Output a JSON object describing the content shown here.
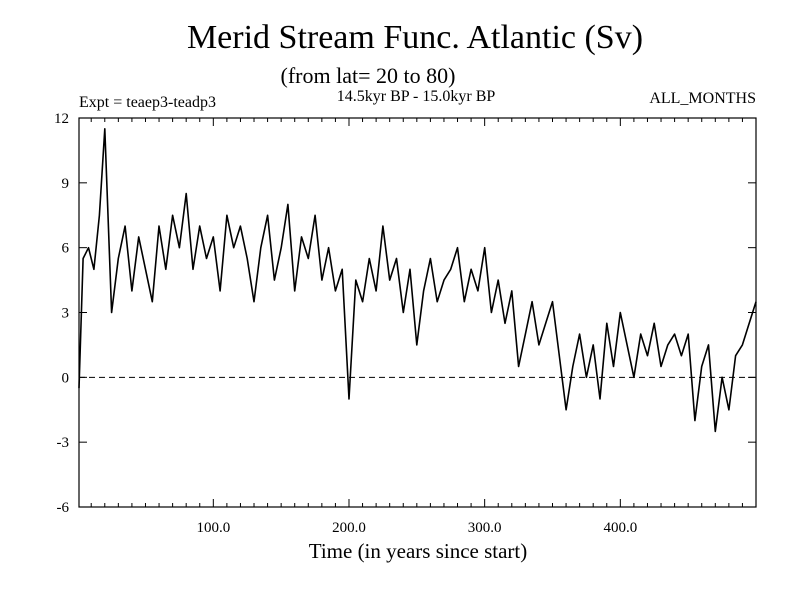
{
  "chart_data": {
    "type": "line",
    "title": "Merid Stream Func. Atlantic (Sv)",
    "subtitle": "(from lat= 20 to 80)",
    "experiment_label": "Expt = teaep3-teadp3",
    "period_label": "14.5kyr BP - 15.0kyr BP",
    "season_label": "ALL_MONTHS",
    "xlabel": "Time (in years since start)",
    "ylabel": "",
    "xlim": [
      1,
      500
    ],
    "ylim": [
      -6,
      12
    ],
    "x_ticks": [
      100,
      200,
      300,
      400
    ],
    "x_tick_labels": [
      "100.0",
      "200.0",
      "300.0",
      "400.0"
    ],
    "y_ticks": [
      -6,
      -3,
      0,
      3,
      6,
      9,
      12
    ],
    "y_tick_labels": [
      "-6",
      "-3",
      "0",
      "3",
      "6",
      "9",
      "12"
    ],
    "zero_line": "dashed",
    "grid": false,
    "legend": "none",
    "line_color": "#000000",
    "series": [
      {
        "x": [
          1,
          4,
          8,
          12,
          16,
          20,
          25,
          30,
          35,
          40,
          45,
          50,
          55,
          60,
          65,
          70,
          75,
          80,
          85,
          90,
          95,
          100,
          105,
          110,
          115,
          120,
          125,
          130,
          135,
          140,
          145,
          150,
          155,
          160,
          165,
          170,
          175,
          180,
          185,
          190,
          195,
          200,
          205,
          210,
          215,
          220,
          225,
          230,
          235,
          240,
          245,
          250,
          255,
          260,
          265,
          270,
          275,
          280,
          285,
          290,
          295,
          300,
          305,
          310,
          315,
          320,
          325,
          330,
          335,
          340,
          345,
          350,
          355,
          360,
          365,
          370,
          375,
          380,
          385,
          390,
          395,
          400,
          405,
          410,
          415,
          420,
          425,
          430,
          435,
          440,
          445,
          450,
          455,
          460,
          465,
          470,
          475,
          480,
          485,
          490,
          495,
          500
        ],
        "y": [
          -0.5,
          5.5,
          6.0,
          5.0,
          7.5,
          11.5,
          3.0,
          5.5,
          7.0,
          4.0,
          6.5,
          5.0,
          3.5,
          7.0,
          5.0,
          7.5,
          6.0,
          8.5,
          5.0,
          7.0,
          5.5,
          6.5,
          4.0,
          7.5,
          6.0,
          7.0,
          5.5,
          3.5,
          6.0,
          7.5,
          4.5,
          6.0,
          8.0,
          4.0,
          6.5,
          5.5,
          7.5,
          4.5,
          6.0,
          4.0,
          5.0,
          -1.0,
          4.5,
          3.5,
          5.5,
          4.0,
          7.0,
          4.5,
          5.5,
          3.0,
          5.0,
          1.5,
          4.0,
          5.5,
          3.5,
          4.5,
          5.0,
          6.0,
          3.5,
          5.0,
          4.0,
          6.0,
          3.0,
          4.5,
          2.5,
          4.0,
          0.5,
          2.0,
          3.5,
          1.5,
          2.5,
          3.5,
          1.0,
          -1.5,
          0.5,
          2.0,
          0.0,
          1.5,
          -1.0,
          2.5,
          0.5,
          3.0,
          1.5,
          0.0,
          2.0,
          1.0,
          2.5,
          0.5,
          1.5,
          2.0,
          1.0,
          2.0,
          -2.0,
          0.5,
          1.5,
          -2.5,
          0.0,
          -1.5,
          1.0,
          1.5,
          2.5,
          3.5
        ]
      }
    ]
  }
}
